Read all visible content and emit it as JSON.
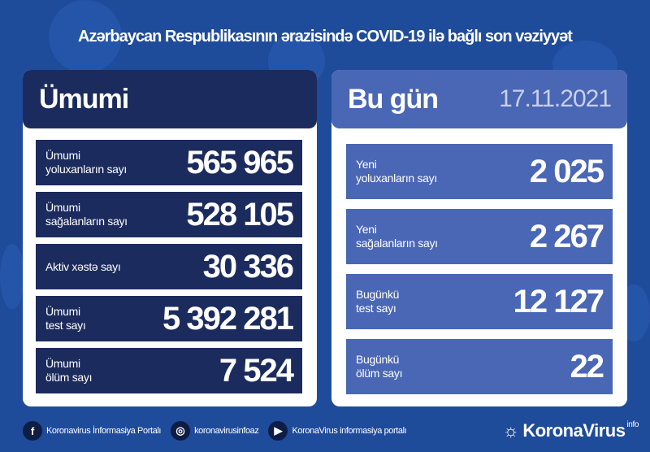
{
  "title": "Azərbaycan Respublikasının ərazisində COVID-19 ilə bağlı son vəziyyət",
  "overall": {
    "heading": "Ümumi",
    "items": [
      {
        "label1": "Ümumi",
        "label2": "yoluxanların sayı",
        "value": "565 965"
      },
      {
        "label1": "Ümumi",
        "label2": "sağalanların sayı",
        "value": "528 105"
      },
      {
        "label1": "Aktiv xəstə sayı",
        "label2": "",
        "value": "30 336"
      },
      {
        "label1": "Ümumi",
        "label2": "test sayı",
        "value": "5 392 281"
      },
      {
        "label1": "Ümumi",
        "label2": "ölüm sayı",
        "value": "7 524"
      }
    ]
  },
  "today": {
    "heading": "Bu gün",
    "date": "17.11.2021",
    "items": [
      {
        "label1": "Yeni",
        "label2": "yoluxanların sayı",
        "value": "2 025"
      },
      {
        "label1": "Yeni",
        "label2": "sağalanların sayı",
        "value": "2 267"
      },
      {
        "label1": "Bugünkü",
        "label2": "test sayı",
        "value": "12 127"
      },
      {
        "label1": "Bugünkü",
        "label2": "ölüm sayı",
        "value": "22"
      }
    ]
  },
  "footer": {
    "facebook": "Koronavirus İnformasiya Portalı",
    "instagram": "koronavirusinfoaz",
    "youtube": "KoronaVirus informasiya portalı",
    "brand": "KoronaVirus",
    "brand_suffix": "info"
  },
  "colors": {
    "background": "#1f4b9b",
    "overall_card": "#1c2b5e",
    "today_card": "#4a67b5"
  }
}
